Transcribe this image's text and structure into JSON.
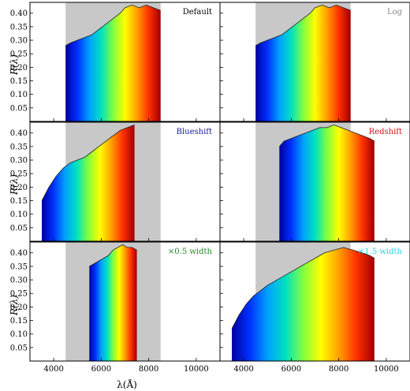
{
  "figure": {
    "ylabel": "R(λ)",
    "xlabel": "λ(Å)"
  },
  "chart_data": [
    {
      "type": "area",
      "label": "Default",
      "label_color": "#000000",
      "xlim": [
        3000,
        11000
      ],
      "ylim": [
        0,
        0.44
      ],
      "x_ticks": [
        4000,
        6000,
        8000,
        10000
      ],
      "y_ticks": [
        0.05,
        0.1,
        0.15,
        0.2,
        0.25,
        0.3,
        0.35,
        0.4
      ],
      "shaded_band": [
        4500,
        8500
      ],
      "x": [
        4500,
        4700,
        5000,
        5300,
        5600,
        5900,
        6200,
        6500,
        6800,
        7000,
        7300,
        7600,
        7900,
        8200,
        8500
      ],
      "y": [
        0.28,
        0.29,
        0.3,
        0.31,
        0.32,
        0.34,
        0.36,
        0.38,
        0.4,
        0.42,
        0.43,
        0.42,
        0.43,
        0.42,
        0.41
      ]
    },
    {
      "type": "area",
      "label": "Log",
      "label_color": "#888888",
      "xlim": [
        3000,
        11000
      ],
      "ylim": [
        0,
        0.44
      ],
      "x_ticks": [
        4000,
        6000,
        8000,
        10000
      ],
      "y_ticks": [
        0.05,
        0.1,
        0.15,
        0.2,
        0.25,
        0.3,
        0.35,
        0.4
      ],
      "shaded_band": [
        4500,
        8500
      ],
      "x": [
        4500,
        4700,
        5000,
        5300,
        5600,
        5900,
        6200,
        6500,
        6800,
        7000,
        7300,
        7600,
        7900,
        8200,
        8500
      ],
      "y": [
        0.28,
        0.29,
        0.3,
        0.31,
        0.32,
        0.34,
        0.36,
        0.38,
        0.4,
        0.42,
        0.43,
        0.42,
        0.43,
        0.42,
        0.41
      ]
    },
    {
      "type": "area",
      "label": "Blueshift",
      "label_color": "#1a1aa6",
      "xlim": [
        3000,
        11000
      ],
      "ylim": [
        0,
        0.44
      ],
      "x_ticks": [
        4000,
        6000,
        8000,
        10000
      ],
      "y_ticks": [
        0.05,
        0.1,
        0.15,
        0.2,
        0.25,
        0.3,
        0.35,
        0.4
      ],
      "shaded_band": [
        4500,
        8500
      ],
      "x": [
        3500,
        3800,
        4100,
        4400,
        4700,
        5000,
        5300,
        5600,
        5900,
        6200,
        6500,
        6800,
        7100,
        7400
      ],
      "y": [
        0.15,
        0.2,
        0.24,
        0.27,
        0.29,
        0.3,
        0.31,
        0.33,
        0.35,
        0.37,
        0.39,
        0.41,
        0.42,
        0.43
      ]
    },
    {
      "type": "area",
      "label": "Redshift",
      "label_color": "#dd1111",
      "xlim": [
        3000,
        11000
      ],
      "ylim": [
        0,
        0.44
      ],
      "x_ticks": [
        4000,
        6000,
        8000,
        10000
      ],
      "y_ticks": [
        0.05,
        0.1,
        0.15,
        0.2,
        0.25,
        0.3,
        0.35,
        0.4
      ],
      "shaded_band": [
        4500,
        8500
      ],
      "x": [
        5500,
        5700,
        6000,
        6300,
        6600,
        6900,
        7200,
        7500,
        7800,
        8100,
        8400,
        8700,
        9000,
        9300,
        9500
      ],
      "y": [
        0.35,
        0.37,
        0.38,
        0.39,
        0.4,
        0.41,
        0.42,
        0.42,
        0.43,
        0.42,
        0.41,
        0.4,
        0.39,
        0.38,
        0.37
      ]
    },
    {
      "type": "area",
      "label": "×0.5 width",
      "label_color": "#1f8a1f",
      "xlim": [
        3000,
        11000
      ],
      "ylim": [
        0,
        0.44
      ],
      "x_ticks": [
        4000,
        6000,
        8000,
        10000
      ],
      "y_ticks": [
        0.05,
        0.1,
        0.15,
        0.2,
        0.25,
        0.3,
        0.35,
        0.4
      ],
      "shaded_band": [
        4500,
        8500
      ],
      "x": [
        5500,
        5700,
        5900,
        6100,
        6300,
        6500,
        6700,
        6900,
        7100,
        7300,
        7500
      ],
      "y": [
        0.35,
        0.36,
        0.37,
        0.38,
        0.39,
        0.41,
        0.42,
        0.43,
        0.42,
        0.42,
        0.41
      ]
    },
    {
      "type": "area",
      "label": "×1.5 width",
      "label_color": "#2ad4e0",
      "xlim": [
        3000,
        11000
      ],
      "ylim": [
        0,
        0.44
      ],
      "x_ticks": [
        4000,
        6000,
        8000,
        10000
      ],
      "y_ticks": [
        0.05,
        0.1,
        0.15,
        0.2,
        0.25,
        0.3,
        0.35,
        0.4
      ],
      "shaded_band": [
        4500,
        8500
      ],
      "x": [
        3500,
        3800,
        4100,
        4400,
        4700,
        5000,
        5400,
        5800,
        6200,
        6600,
        7000,
        7400,
        7800,
        8200,
        8600,
        9000,
        9300,
        9500
      ],
      "y": [
        0.12,
        0.17,
        0.21,
        0.24,
        0.26,
        0.28,
        0.3,
        0.32,
        0.34,
        0.36,
        0.38,
        0.4,
        0.41,
        0.42,
        0.41,
        0.4,
        0.39,
        0.38
      ]
    }
  ]
}
